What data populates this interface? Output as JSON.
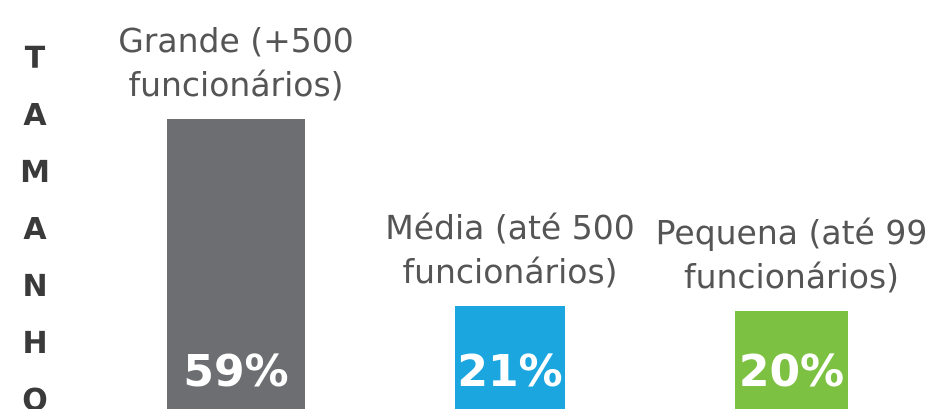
{
  "chart_data": {
    "type": "bar",
    "ylabel": "TAMANHO",
    "categories": [
      "Grande (+500 funcionários)",
      "Média (até 500 funcionários)",
      "Pequena (até 99 funcionários)"
    ],
    "values": [
      59,
      21,
      20
    ],
    "value_labels": [
      "59%",
      "21%",
      "20%"
    ],
    "colors": [
      "#6d6e71",
      "#1ba6e0",
      "#7dc142"
    ]
  }
}
